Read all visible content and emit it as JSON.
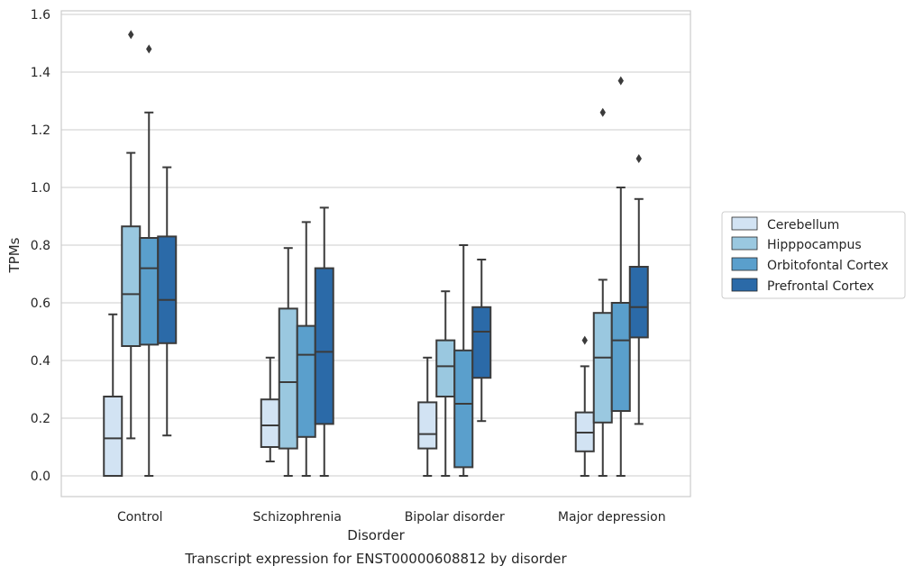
{
  "chart_data": {
    "type": "box",
    "caption": "Transcript expression for ENST00000608812 by disorder",
    "xlabel": "Disorder",
    "ylabel": "TPMs",
    "ylim": [
      -0.07,
      1.61
    ],
    "yticks": [
      "0.0",
      "0.2",
      "0.4",
      "0.6",
      "0.8",
      "1.0",
      "1.2",
      "1.4",
      "1.6"
    ],
    "grid": "horizontal",
    "legend_position": "right",
    "categories": [
      "Control",
      "Schizophrenia",
      "Bipolar disorder",
      "Major depression"
    ],
    "series": [
      {
        "name": "Cerebellum",
        "color": "#d2e3f3",
        "boxes": [
          {
            "whisker_low": 0.0,
            "q1": 0.0,
            "median": 0.13,
            "q3": 0.275,
            "whisker_high": 0.56,
            "outliers": []
          },
          {
            "whisker_low": 0.05,
            "q1": 0.1,
            "median": 0.175,
            "q3": 0.265,
            "whisker_high": 0.41,
            "outliers": []
          },
          {
            "whisker_low": 0.0,
            "q1": 0.095,
            "median": 0.145,
            "q3": 0.255,
            "whisker_high": 0.41,
            "outliers": []
          },
          {
            "whisker_low": 0.0,
            "q1": 0.085,
            "median": 0.15,
            "q3": 0.22,
            "whisker_high": 0.38,
            "outliers": [
              0.47
            ]
          }
        ]
      },
      {
        "name": "Hipppocampus",
        "color": "#9ac8e0",
        "boxes": [
          {
            "whisker_low": 0.13,
            "q1": 0.45,
            "median": 0.63,
            "q3": 0.865,
            "whisker_high": 1.12,
            "outliers": [
              1.53
            ]
          },
          {
            "whisker_low": 0.0,
            "q1": 0.095,
            "median": 0.325,
            "q3": 0.58,
            "whisker_high": 0.79,
            "outliers": []
          },
          {
            "whisker_low": 0.0,
            "q1": 0.275,
            "median": 0.38,
            "q3": 0.47,
            "whisker_high": 0.64,
            "outliers": []
          },
          {
            "whisker_low": 0.0,
            "q1": 0.185,
            "median": 0.41,
            "q3": 0.565,
            "whisker_high": 0.68,
            "outliers": [
              1.26
            ]
          }
        ]
      },
      {
        "name": "Orbitofontal Cortex",
        "color": "#5a9fcc",
        "boxes": [
          {
            "whisker_low": 0.0,
            "q1": 0.455,
            "median": 0.72,
            "q3": 0.825,
            "whisker_high": 1.26,
            "outliers": [
              1.48
            ]
          },
          {
            "whisker_low": 0.0,
            "q1": 0.135,
            "median": 0.42,
            "q3": 0.52,
            "whisker_high": 0.88,
            "outliers": []
          },
          {
            "whisker_low": 0.0,
            "q1": 0.03,
            "median": 0.25,
            "q3": 0.435,
            "whisker_high": 0.8,
            "outliers": []
          },
          {
            "whisker_low": 0.0,
            "q1": 0.225,
            "median": 0.47,
            "q3": 0.6,
            "whisker_high": 1.0,
            "outliers": [
              1.37
            ]
          }
        ]
      },
      {
        "name": "Prefrontal Cortex",
        "color": "#2b6aa8",
        "boxes": [
          {
            "whisker_low": 0.14,
            "q1": 0.46,
            "median": 0.61,
            "q3": 0.83,
            "whisker_high": 1.07,
            "outliers": []
          },
          {
            "whisker_low": 0.0,
            "q1": 0.18,
            "median": 0.43,
            "q3": 0.72,
            "whisker_high": 0.93,
            "outliers": []
          },
          {
            "whisker_low": 0.19,
            "q1": 0.34,
            "median": 0.5,
            "q3": 0.585,
            "whisker_high": 0.75,
            "outliers": []
          },
          {
            "whisker_low": 0.18,
            "q1": 0.48,
            "median": 0.585,
            "q3": 0.725,
            "whisker_high": 0.96,
            "outliers": [
              1.1
            ]
          }
        ]
      }
    ]
  }
}
